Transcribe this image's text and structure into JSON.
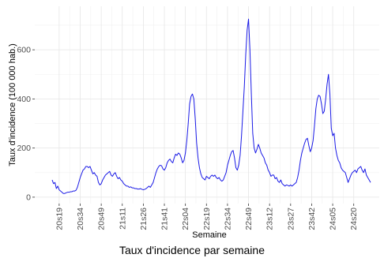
{
  "chart_data": {
    "type": "line",
    "title": "Taux d'incidence par semaine",
    "x_label": "Semaine",
    "y_label": "Taux d'incidence (100 000 hab.)",
    "categories": [
      null,
      null,
      null,
      null,
      null,
      "20s19",
      null,
      null,
      null,
      null,
      null,
      null,
      null,
      null,
      null,
      null,
      null,
      null,
      null,
      null,
      "20s34",
      null,
      null,
      null,
      null,
      null,
      null,
      null,
      null,
      null,
      null,
      null,
      null,
      null,
      null,
      "20s49",
      null,
      null,
      null,
      null,
      null,
      null,
      null,
      null,
      null,
      null,
      null,
      null,
      null,
      null,
      "21s11",
      null,
      null,
      null,
      null,
      null,
      null,
      null,
      null,
      null,
      null,
      null,
      null,
      null,
      null,
      "21s26",
      null,
      null,
      null,
      null,
      null,
      null,
      null,
      null,
      null,
      null,
      null,
      null,
      null,
      null,
      "21s41",
      null,
      null,
      null,
      null,
      null,
      null,
      null,
      null,
      null,
      null,
      null,
      null,
      null,
      null,
      "22s04",
      null,
      null,
      null,
      null,
      null,
      null,
      null,
      null,
      null,
      null,
      null,
      null,
      null,
      null,
      "22s19",
      null,
      null,
      null,
      null,
      null,
      null,
      null,
      null,
      null,
      null,
      null,
      null,
      null,
      null,
      "22s34",
      null,
      null,
      null,
      null,
      null,
      null,
      null,
      null,
      null,
      null,
      null,
      null,
      null,
      null,
      "22s49",
      null,
      null,
      null,
      null,
      null,
      null,
      null,
      null,
      null,
      null,
      null,
      null,
      null,
      null,
      "23s12",
      null,
      null,
      null,
      null,
      null,
      null,
      null,
      null,
      null,
      null,
      null,
      null,
      null,
      null,
      "23s27",
      null,
      null,
      null,
      null,
      null,
      null,
      null,
      null,
      null,
      null,
      null,
      null,
      null,
      null,
      "23s42",
      null,
      null,
      null,
      null,
      null,
      null,
      null,
      null,
      null,
      null,
      null,
      null,
      null,
      null,
      "24s05",
      null,
      null,
      null,
      null,
      null,
      null,
      null,
      null,
      null,
      null,
      null,
      null,
      null,
      null,
      "24s20",
      null,
      null,
      null,
      null,
      null,
      null,
      null,
      null,
      null,
      null,
      null,
      null
    ],
    "series": [
      {
        "name": "Taux d'incidence",
        "color": "#1a1ae6",
        "values": [
          70,
          55,
          60,
          35,
          45,
          30,
          25,
          20,
          15,
          15,
          18,
          20,
          20,
          22,
          22,
          25,
          25,
          28,
          40,
          60,
          80,
          95,
          110,
          115,
          125,
          125,
          120,
          125,
          110,
          95,
          100,
          90,
          85,
          60,
          50,
          55,
          70,
          80,
          90,
          95,
          100,
          105,
          90,
          85,
          95,
          100,
          85,
          75,
          80,
          70,
          65,
          55,
          50,
          45,
          45,
          40,
          42,
          38,
          38,
          35,
          35,
          33,
          33,
          35,
          32,
          30,
          32,
          35,
          40,
          45,
          40,
          50,
          60,
          80,
          100,
          115,
          125,
          130,
          128,
          115,
          110,
          120,
          140,
          150,
          155,
          145,
          140,
          160,
          175,
          170,
          180,
          175,
          160,
          140,
          150,
          180,
          230,
          300,
          380,
          410,
          420,
          400,
          320,
          220,
          160,
          120,
          95,
          80,
          75,
          70,
          85,
          80,
          75,
          85,
          90,
          85,
          90,
          80,
          75,
          80,
          70,
          65,
          70,
          85,
          100,
          130,
          150,
          170,
          185,
          190,
          160,
          120,
          110,
          130,
          170,
          250,
          350,
          450,
          580,
          680,
          725,
          600,
          420,
          260,
          200,
          180,
          195,
          215,
          200,
          180,
          170,
          160,
          140,
          130,
          110,
          100,
          85,
          90,
          90,
          75,
          80,
          65,
          60,
          70,
          55,
          50,
          45,
          50,
          48,
          45,
          50,
          45,
          50,
          55,
          60,
          80,
          110,
          150,
          180,
          200,
          220,
          235,
          240,
          210,
          185,
          200,
          230,
          290,
          360,
          400,
          415,
          410,
          380,
          340,
          350,
          400,
          460,
          500,
          420,
          280,
          250,
          260,
          200,
          170,
          150,
          140,
          120,
          110,
          105,
          100,
          80,
          60,
          75,
          90,
          100,
          105,
          110,
          100,
          115,
          120,
          125,
          110,
          100,
          115,
          90,
          80,
          70,
          60
        ]
      }
    ],
    "ylim": [
      -26,
      777
    ],
    "yticks": [
      0,
      200,
      400,
      600
    ],
    "y_minor_ticks": [
      100,
      300,
      500,
      700
    ],
    "grid": true
  }
}
